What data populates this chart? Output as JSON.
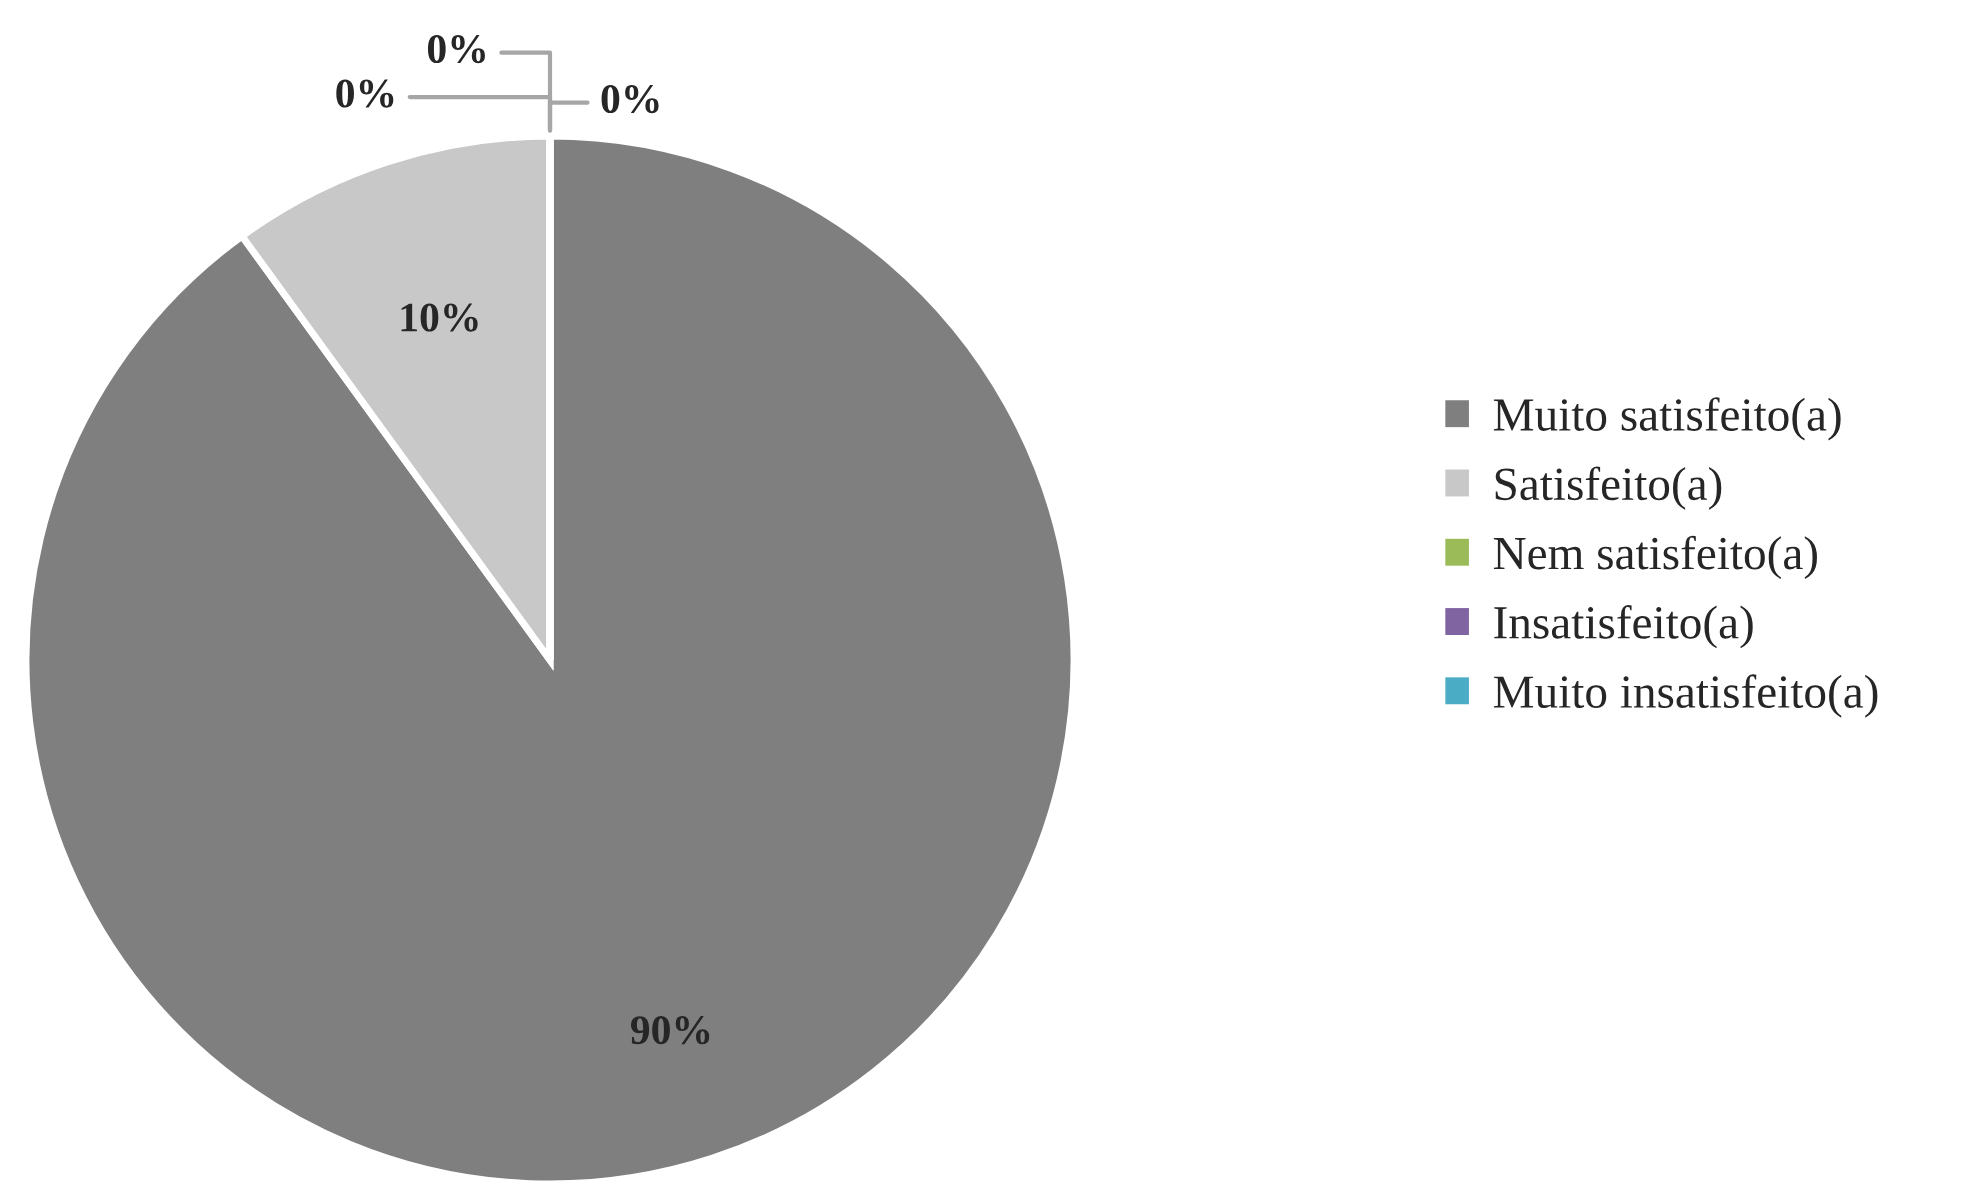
{
  "chart_data": {
    "type": "pie",
    "categories": [
      "Muito satisfeito(a)",
      "Satisfeito(a)",
      "Nem satisfeito(a)",
      "Insatisfeito(a)",
      "Muito insatisfeito(a)"
    ],
    "values": [
      90,
      10,
      0,
      0,
      0
    ],
    "colors": [
      "#7f7f7f",
      "#c8c8c8",
      "#9bbb59",
      "#8064a2",
      "#4bacc6"
    ],
    "value_labels": [
      "90%",
      "10%",
      "0%",
      "0%",
      "0%"
    ],
    "legend": "right"
  }
}
